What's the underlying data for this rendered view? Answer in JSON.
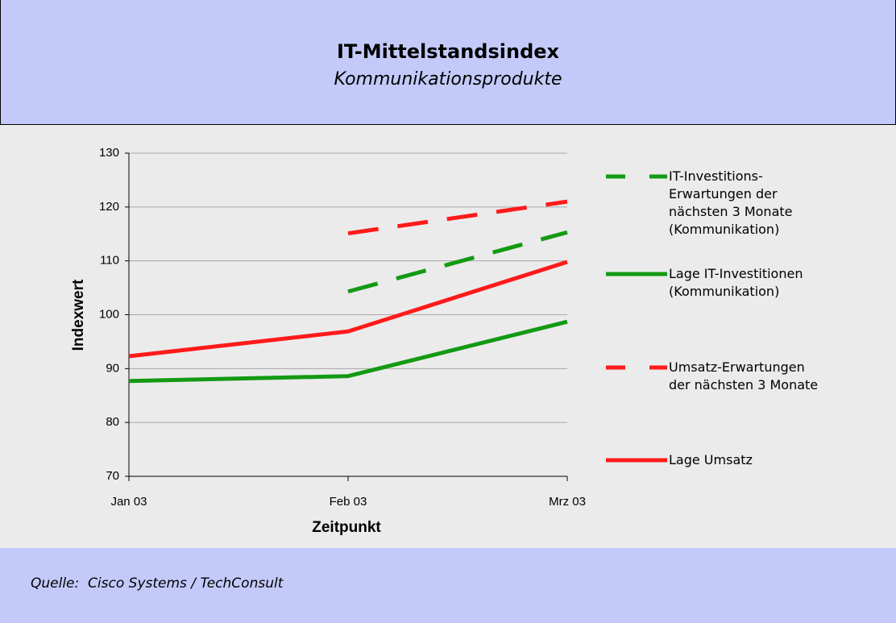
{
  "header": {
    "title": "IT-Mittelstandsindex",
    "subtitle": "Kommunikationsprodukte"
  },
  "chart_data": {
    "type": "line",
    "categories": [
      "Jan 03",
      "Feb 03",
      "Mrz 03"
    ],
    "x_label": "Zeitpunkt",
    "y_label": "Indexwert",
    "ylim": [
      70,
      130
    ],
    "yticks": [
      70,
      80,
      90,
      100,
      110,
      120,
      130
    ],
    "grid": true,
    "series": [
      {
        "name": "IT-Investitions-Erwartungen der nächsten 3 Monate (Kommunikation)",
        "color": "#139a13",
        "dashed": true,
        "values": [
          null,
          104.3,
          115.3
        ]
      },
      {
        "name": "Lage IT-Investitionen (Kommunikation)",
        "color": "#139a13",
        "dashed": false,
        "values": [
          87.7,
          88.6,
          98.7
        ]
      },
      {
        "name": "Umsatz-Erwartungen der nächsten 3 Monate",
        "color": "#ff1a1a",
        "dashed": true,
        "values": [
          null,
          115.1,
          121
        ]
      },
      {
        "name": "Lage Umsatz",
        "color": "#ff1a1a",
        "dashed": false,
        "values": [
          92.3,
          96.9,
          109.8
        ]
      }
    ]
  },
  "footer": {
    "source": "Quelle:  Cisco Systems / TechConsult"
  }
}
